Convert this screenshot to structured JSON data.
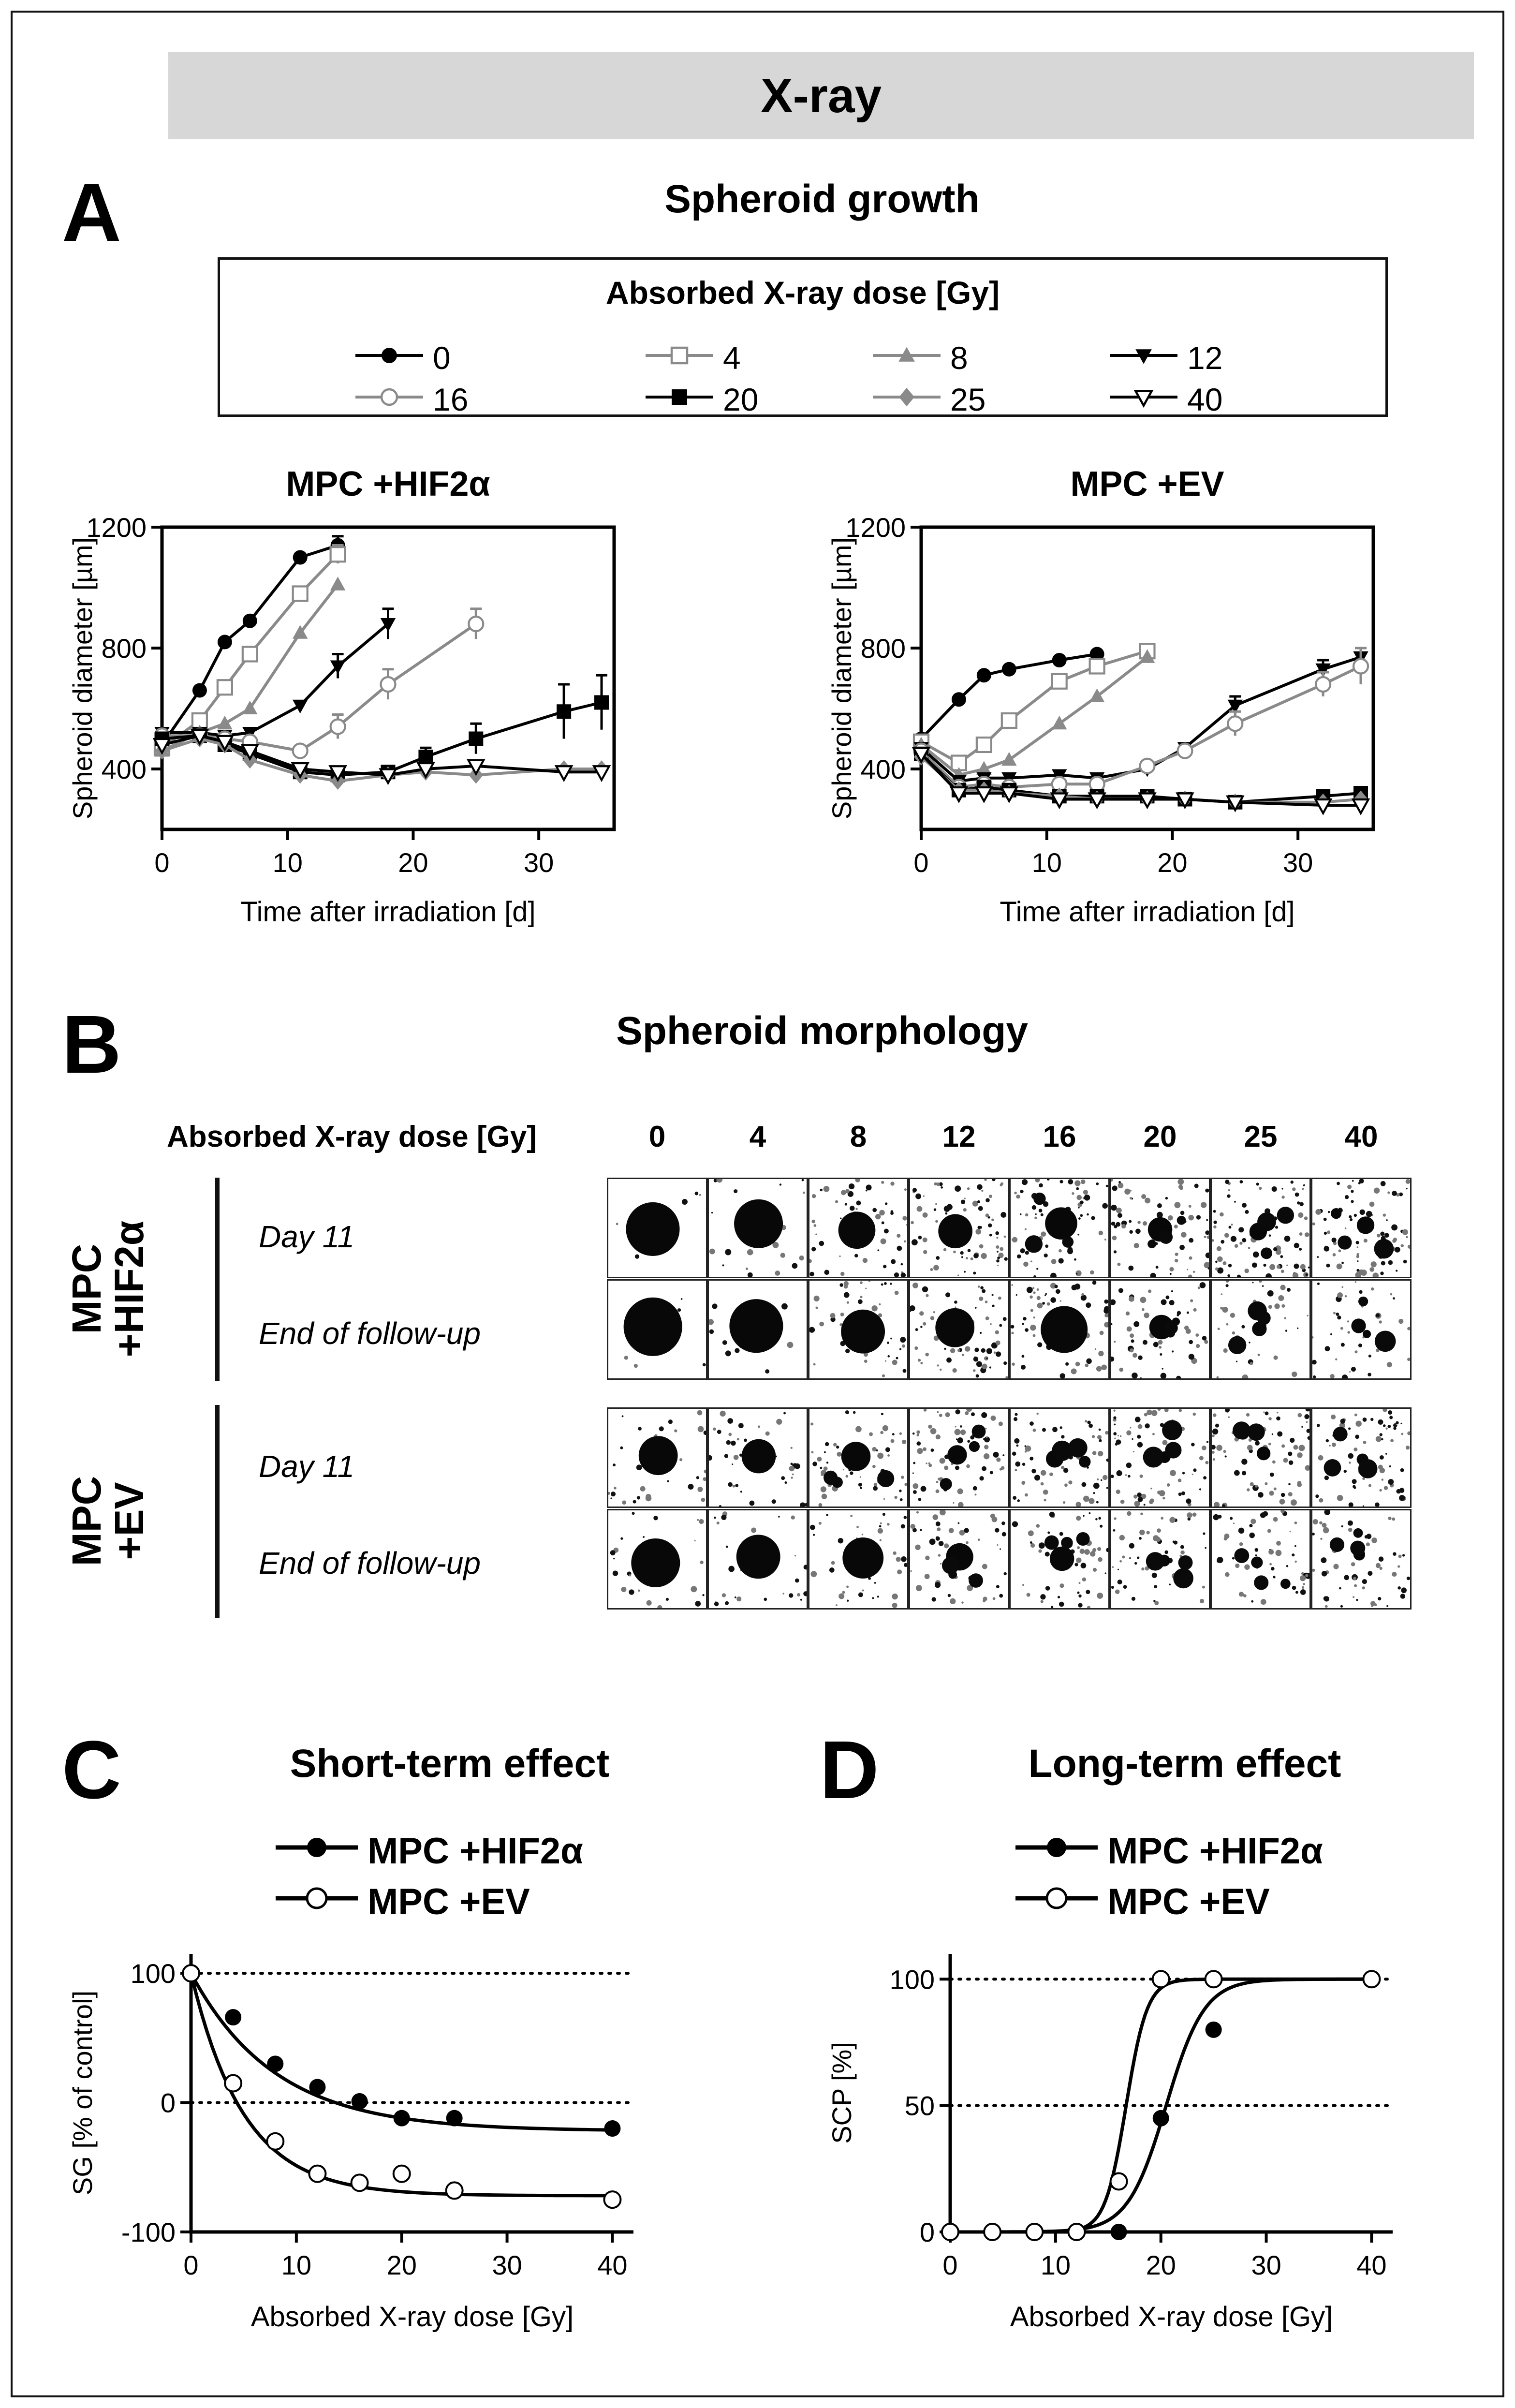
{
  "banner": "X-ray",
  "panels": {
    "A": {
      "letter": "A",
      "title": "Spheroid growth"
    },
    "B": {
      "letter": "B",
      "title": "Spheroid morphology"
    },
    "C": {
      "letter": "C",
      "title": "Short-term effect"
    },
    "D": {
      "letter": "D",
      "title": "Long-term effect"
    }
  },
  "legendA": {
    "title": "Absorbed X-ray dose [Gy]",
    "entries": [
      {
        "label": "0",
        "marker": "circle",
        "filled": true,
        "color": "#000000"
      },
      {
        "label": "4",
        "marker": "square",
        "filled": false,
        "color": "#8a8a8a"
      },
      {
        "label": "8",
        "marker": "triangle-up",
        "filled": true,
        "color": "#8a8a8a"
      },
      {
        "label": "12",
        "marker": "triangle-down",
        "filled": true,
        "color": "#000000"
      },
      {
        "label": "16",
        "marker": "circle",
        "filled": false,
        "color": "#8a8a8a"
      },
      {
        "label": "20",
        "marker": "square",
        "filled": true,
        "color": "#000000"
      },
      {
        "label": "25",
        "marker": "diamond",
        "filled": true,
        "color": "#8a8a8a"
      },
      {
        "label": "40",
        "marker": "triangle-down",
        "filled": false,
        "color": "#000000"
      }
    ]
  },
  "morphology": {
    "dose_header": "Absorbed X-ray dose [Gy]",
    "doses": [
      "0",
      "4",
      "8",
      "12",
      "16",
      "20",
      "25",
      "40"
    ],
    "groups": [
      {
        "label_line1": "MPC",
        "label_line2": "+HIF2α",
        "rows": [
          "Day 11",
          "End of follow-up"
        ]
      },
      {
        "label_line1": "MPC",
        "label_line2": "+EV",
        "rows": [
          "Day 11",
          "End of follow-up"
        ]
      }
    ]
  },
  "legendCD": {
    "hif": "MPC +HIF2α",
    "ev": "MPC +EV"
  },
  "chart_data": [
    {
      "id": "A-left",
      "type": "line",
      "title": "MPC +HIF2α",
      "xlabel": "Time after irradiation [d]",
      "ylabel": "Spheroid diameter [µm]",
      "xlim": [
        0,
        36
      ],
      "ylim": [
        200,
        1200
      ],
      "xticks": [
        0,
        10,
        20,
        30
      ],
      "yticks": [
        400,
        800,
        1200
      ],
      "series": [
        {
          "name": "0",
          "x": [
            0,
            3,
            5,
            7,
            11,
            14
          ],
          "y": [
            480,
            660,
            820,
            890,
            1100,
            1140
          ],
          "err": [
            0,
            0,
            0,
            0,
            0,
            30
          ]
        },
        {
          "name": "4",
          "x": [
            0,
            3,
            5,
            7,
            11,
            14
          ],
          "y": [
            470,
            560,
            670,
            780,
            980,
            1110
          ],
          "err": [
            0,
            0,
            0,
            0,
            0,
            30
          ]
        },
        {
          "name": "8",
          "x": [
            0,
            3,
            5,
            7,
            11,
            14
          ],
          "y": [
            460,
            520,
            550,
            600,
            850,
            1010
          ],
          "err": [
            0,
            0,
            0,
            0,
            0,
            0
          ]
        },
        {
          "name": "12",
          "x": [
            0,
            3,
            5,
            7,
            11,
            14,
            18
          ],
          "y": [
            520,
            520,
            510,
            520,
            610,
            740,
            880
          ],
          "err": [
            0,
            0,
            0,
            0,
            0,
            40,
            50
          ]
        },
        {
          "name": "16",
          "x": [
            0,
            3,
            5,
            7,
            11,
            14,
            18,
            25
          ],
          "y": [
            510,
            510,
            500,
            490,
            460,
            540,
            680,
            880
          ],
          "err": [
            0,
            0,
            0,
            0,
            0,
            40,
            50,
            50
          ]
        },
        {
          "name": "20",
          "x": [
            0,
            3,
            5,
            7,
            11,
            14,
            18,
            21,
            25,
            32,
            35
          ],
          "y": [
            500,
            510,
            480,
            450,
            390,
            380,
            390,
            440,
            500,
            590,
            620
          ],
          "err": [
            0,
            0,
            0,
            0,
            0,
            0,
            0,
            30,
            50,
            90,
            90
          ]
        },
        {
          "name": "25",
          "x": [
            0,
            3,
            5,
            7,
            11,
            14,
            18,
            21,
            25,
            32,
            35
          ],
          "y": [
            460,
            500,
            480,
            430,
            380,
            360,
            380,
            390,
            380,
            400,
            400
          ],
          "err": [
            0,
            0,
            0,
            0,
            0,
            0,
            0,
            0,
            0,
            0,
            0
          ]
        },
        {
          "name": "40",
          "x": [
            0,
            3,
            5,
            7,
            11,
            14,
            18,
            21,
            25,
            32,
            35
          ],
          "y": [
            480,
            510,
            490,
            460,
            400,
            390,
            380,
            400,
            410,
            390,
            390
          ],
          "err": [
            0,
            0,
            0,
            0,
            0,
            0,
            0,
            0,
            0,
            0,
            0
          ]
        }
      ]
    },
    {
      "id": "A-right",
      "type": "line",
      "title": "MPC +EV",
      "xlabel": "Time after irradiation [d]",
      "ylabel": "Spheroid diameter [µm]",
      "xlim": [
        0,
        36
      ],
      "ylim": [
        200,
        1200
      ],
      "xticks": [
        0,
        10,
        20,
        30
      ],
      "yticks": [
        400,
        800,
        1200
      ],
      "series": [
        {
          "name": "0",
          "x": [
            0,
            3,
            5,
            7,
            11,
            14
          ],
          "y": [
            500,
            630,
            710,
            730,
            760,
            780
          ],
          "err": [
            0,
            0,
            0,
            0,
            0,
            0
          ]
        },
        {
          "name": "4",
          "x": [
            0,
            3,
            5,
            7,
            11,
            14,
            18
          ],
          "y": [
            490,
            420,
            480,
            560,
            690,
            740,
            790
          ],
          "err": [
            0,
            0,
            0,
            0,
            0,
            0,
            20
          ]
        },
        {
          "name": "8",
          "x": [
            0,
            3,
            5,
            7,
            11,
            14,
            18
          ],
          "y": [
            480,
            380,
            400,
            430,
            550,
            640,
            770
          ],
          "err": [
            0,
            0,
            0,
            0,
            0,
            0,
            0
          ]
        },
        {
          "name": "12",
          "x": [
            0,
            3,
            5,
            7,
            11,
            14,
            18,
            21,
            25,
            32,
            35
          ],
          "y": [
            470,
            360,
            370,
            370,
            380,
            370,
            400,
            470,
            610,
            730,
            770
          ],
          "err": [
            0,
            0,
            0,
            0,
            0,
            0,
            0,
            0,
            30,
            30,
            30
          ]
        },
        {
          "name": "16",
          "x": [
            0,
            3,
            5,
            7,
            11,
            14,
            18,
            21,
            25,
            32,
            35
          ],
          "y": [
            460,
            340,
            350,
            340,
            350,
            350,
            410,
            460,
            550,
            680,
            740
          ],
          "err": [
            0,
            0,
            0,
            0,
            0,
            0,
            0,
            0,
            40,
            40,
            60
          ]
        },
        {
          "name": "20",
          "x": [
            0,
            3,
            5,
            7,
            11,
            14,
            18,
            21,
            25,
            32,
            35
          ],
          "y": [
            450,
            330,
            340,
            330,
            310,
            310,
            310,
            300,
            290,
            310,
            320
          ],
          "err": [
            0,
            0,
            0,
            0,
            0,
            0,
            0,
            0,
            0,
            0,
            0
          ]
        },
        {
          "name": "25",
          "x": [
            0,
            3,
            5,
            7,
            11,
            14,
            18,
            21,
            25,
            32,
            35
          ],
          "y": [
            440,
            330,
            330,
            320,
            310,
            300,
            300,
            300,
            290,
            290,
            300
          ],
          "err": [
            0,
            0,
            0,
            0,
            0,
            0,
            0,
            0,
            0,
            0,
            0
          ]
        },
        {
          "name": "40",
          "x": [
            0,
            3,
            5,
            7,
            11,
            14,
            18,
            21,
            25,
            32,
            35
          ],
          "y": [
            450,
            320,
            320,
            320,
            300,
            300,
            300,
            300,
            290,
            280,
            280
          ],
          "err": [
            0,
            0,
            0,
            0,
            0,
            0,
            0,
            0,
            0,
            0,
            0
          ]
        }
      ]
    },
    {
      "id": "C",
      "type": "scatter",
      "title": "Short-term effect",
      "xlabel": "Absorbed X-ray dose [Gy]",
      "ylabel": "SG [% of control]",
      "xlim": [
        0,
        42
      ],
      "ylim": [
        -100,
        115
      ],
      "xticks": [
        0,
        10,
        20,
        30,
        40
      ],
      "yticks": [
        -100,
        0,
        100
      ],
      "reflines": [
        0,
        100
      ],
      "series": [
        {
          "name": "MPC +HIF2α",
          "filled": true,
          "x": [
            0,
            4,
            8,
            12,
            16,
            20,
            25,
            40
          ],
          "y": [
            100,
            66,
            30,
            12,
            1,
            -12,
            -12,
            -20
          ],
          "fit": {
            "a": 0,
            "b": 0
          }
        },
        {
          "name": "MPC +EV",
          "filled": false,
          "x": [
            0,
            4,
            8,
            12,
            16,
            20,
            25,
            40
          ],
          "y": [
            100,
            15,
            -30,
            -55,
            -62,
            -55,
            -68,
            -75
          ],
          "fit": {
            "a": 0,
            "b": 0
          }
        }
      ]
    },
    {
      "id": "D",
      "type": "scatter",
      "title": "Long-term effect",
      "xlabel": "Absorbed X-ray dose [Gy]",
      "ylabel": "SCP [%]",
      "xlim": [
        0,
        42
      ],
      "ylim": [
        0,
        110
      ],
      "xticks": [
        0,
        10,
        20,
        30,
        40
      ],
      "yticks": [
        0,
        50,
        100
      ],
      "reflines": [
        50,
        100
      ],
      "series": [
        {
          "name": "MPC +HIF2α",
          "filled": true,
          "x": [
            16,
            20,
            25
          ],
          "y": [
            0,
            45,
            80
          ],
          "fit": {
            "ed50": 20.5,
            "slope": 0.55
          }
        },
        {
          "name": "MPC +EV",
          "filled": false,
          "x": [
            0,
            4,
            8,
            12,
            16,
            20,
            25,
            40
          ],
          "y": [
            0,
            0,
            0,
            0,
            20,
            100,
            100,
            100
          ],
          "fit": {
            "ed50": 16.7,
            "slope": 1.0
          }
        }
      ]
    }
  ]
}
